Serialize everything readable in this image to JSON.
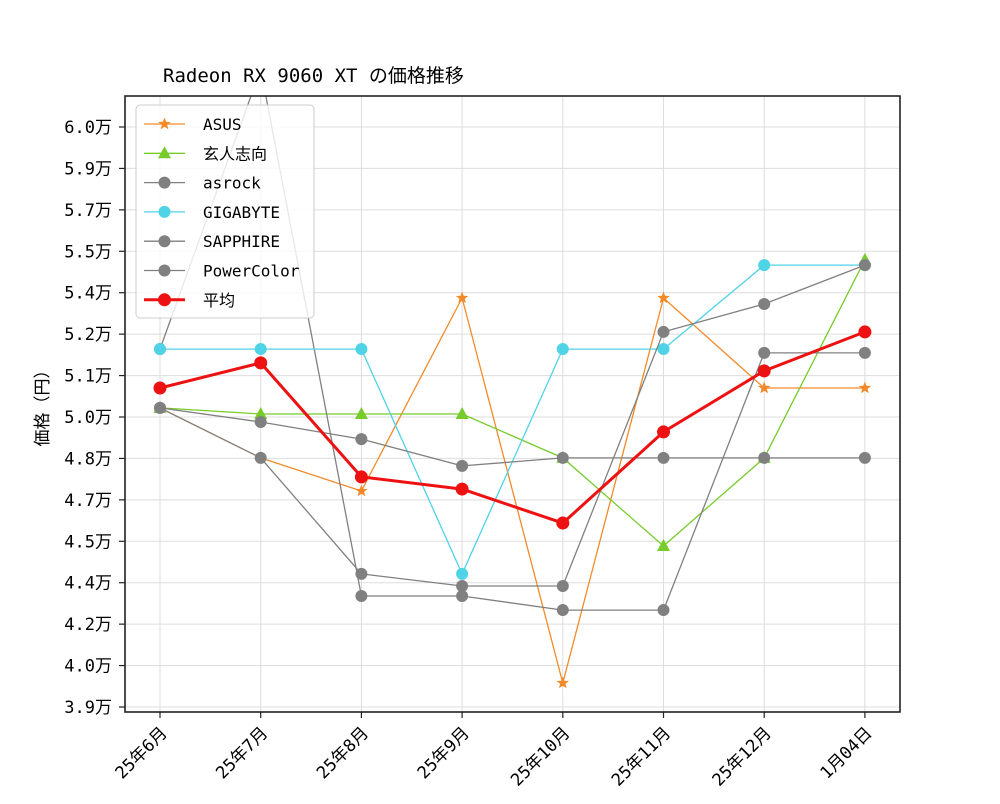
{
  "chart_data": {
    "type": "line",
    "title": "Radeon RX 9060 XT の価格推移",
    "xlabel": "",
    "ylabel": "価格（円）",
    "categories": [
      "25年6月",
      "25年7月",
      "25年8月",
      "25年9月",
      "25年10月",
      "25年11月",
      "25年12月",
      "1月04日"
    ],
    "ylim": [
      38800,
      60900
    ],
    "yticks": [
      {
        "value": 39000,
        "label": "3.9万"
      },
      {
        "value": 40500,
        "label": "4.0万"
      },
      {
        "value": 42000,
        "label": "4.2万"
      },
      {
        "value": 43500,
        "label": "4.4万"
      },
      {
        "value": 45000,
        "label": "4.5万"
      },
      {
        "value": 46500,
        "label": "4.7万"
      },
      {
        "value": 48000,
        "label": "4.8万"
      },
      {
        "value": 49500,
        "label": "5.0万"
      },
      {
        "value": 51000,
        "label": "5.1万"
      },
      {
        "value": 52500,
        "label": "5.2万"
      },
      {
        "value": 54000,
        "label": "5.4万"
      },
      {
        "value": 55500,
        "label": "5.5万"
      },
      {
        "value": 57000,
        "label": "5.7万"
      },
      {
        "value": 58500,
        "label": "5.9万"
      },
      {
        "value": 60000,
        "label": "6.0万"
      }
    ],
    "grid": true,
    "legend_position": "upper left",
    "series": [
      {
        "name": "ASUS",
        "color": "#f28a2a",
        "marker": "star",
        "width": 1.3,
        "values": [
          49830,
          48020,
          46820,
          53810,
          39870,
          53810,
          50550,
          50550
        ]
      },
      {
        "name": "玄人志向",
        "color": "#77cc2c",
        "marker": "triangle",
        "width": 1.3,
        "values": [
          49830,
          49610,
          49610,
          49610,
          48020,
          44830,
          48020,
          55190
        ]
      },
      {
        "name": "asrock",
        "color": "#808080",
        "marker": "circle",
        "width": 1.3,
        "values": [
          51960,
          62100,
          43020,
          43020,
          42510,
          42510,
          51820,
          51820
        ]
      },
      {
        "name": "GIGABYTE",
        "color": "#4fd3e6",
        "marker": "circle",
        "width": 1.3,
        "values": [
          51960,
          51960,
          51960,
          43820,
          51960,
          51960,
          55000,
          55000
        ]
      },
      {
        "name": "SAPPHIRE",
        "color": "#808080",
        "marker": "circle",
        "width": 1.3,
        "values": [
          49830,
          49320,
          48700,
          47730,
          48020,
          48020,
          48020,
          48020
        ]
      },
      {
        "name": "PowerColor",
        "color": "#808080",
        "marker": "circle",
        "width": 1.3,
        "values": [
          49830,
          48020,
          43820,
          43380,
          43380,
          52580,
          53590,
          55000
        ]
      },
      {
        "name": "平均",
        "color": "#ee1111",
        "marker": "circle",
        "width": 3,
        "values": [
          50550,
          51460,
          47330,
          46890,
          45660,
          48960,
          51170,
          52580
        ]
      }
    ]
  }
}
